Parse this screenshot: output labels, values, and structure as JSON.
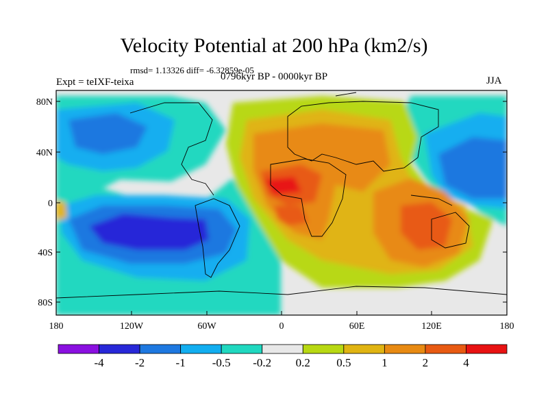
{
  "title": "Velocity Potential at 200 hPa (km2/s)",
  "stats": "rmsd= 1.13326 diff= -6.32859e-05",
  "experiment": "Expt = teIXF-teixa",
  "period": "0796kyr BP - 0000kyr BP",
  "season": "JJA",
  "y_ticks": [
    "80N",
    "40N",
    "0",
    "40S",
    "80S"
  ],
  "x_ticks": [
    "180",
    "120W",
    "60W",
    "0",
    "60E",
    "120E",
    "180"
  ],
  "colorbar": {
    "colors": [
      "#8a10e0",
      "#2828d8",
      "#1e78e0",
      "#12aef0",
      "#20d8c0",
      "#e8e8e8",
      "#b8d812",
      "#e0b412",
      "#e88a12",
      "#e85a12",
      "#e81212"
    ],
    "labels": [
      "-4",
      "-2",
      "-1",
      "-0.5",
      "-0.2",
      "0.2",
      "0.5",
      "1",
      "2",
      "4"
    ]
  }
}
